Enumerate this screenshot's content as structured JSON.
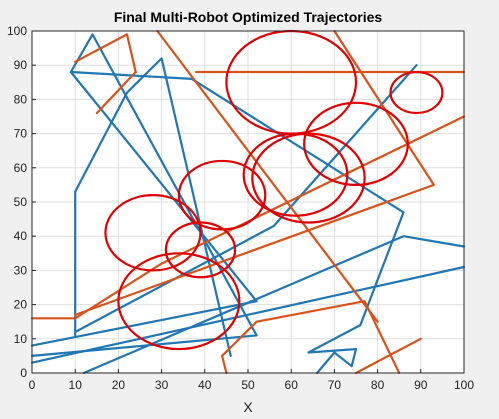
{
  "chart_data": {
    "type": "line",
    "title": "Final Multi-Robot Optimized Trajectories",
    "xlabel": "X",
    "ylabel": "",
    "xlim": [
      0,
      100
    ],
    "ylim": [
      0,
      100
    ],
    "xticks": [
      0,
      10,
      20,
      30,
      40,
      50,
      60,
      70,
      80,
      90,
      100
    ],
    "yticks": [
      0,
      10,
      20,
      30,
      40,
      50,
      60,
      70,
      80,
      90,
      100
    ],
    "grid": true,
    "colors": {
      "blue": "#1f77b4",
      "orange": "#d95319",
      "red": "#e00000",
      "background": "#f0f0f0",
      "plot_bg": "#ffffff",
      "grid": "#dfdfdf"
    },
    "series": [
      {
        "color": "#1f77b4",
        "points": [
          [
            0,
            8
          ],
          [
            52,
            21
          ],
          [
            9,
            88
          ],
          [
            14,
            99
          ],
          [
            52,
            11
          ],
          [
            0,
            5
          ]
        ]
      },
      {
        "color": "#1f77b4",
        "points": [
          [
            10,
            11
          ],
          [
            10,
            53
          ],
          [
            22,
            82
          ],
          [
            30,
            92
          ],
          [
            46,
            5
          ]
        ]
      },
      {
        "color": "#1f77b4",
        "points": [
          [
            9,
            88
          ],
          [
            37,
            86
          ],
          [
            86,
            47
          ],
          [
            76,
            14
          ],
          [
            64,
            6
          ],
          [
            75,
            7
          ],
          [
            74,
            2
          ],
          [
            70,
            6
          ],
          [
            66,
            0
          ]
        ]
      },
      {
        "color": "#1f77b4",
        "points": [
          [
            10,
            12
          ],
          [
            56,
            43
          ],
          [
            89,
            90
          ]
        ]
      },
      {
        "color": "#1f77b4",
        "points": [
          [
            12,
            0
          ],
          [
            86,
            40
          ],
          [
            100,
            37
          ]
        ]
      },
      {
        "color": "#1f77b4",
        "points": [
          [
            0,
            3
          ],
          [
            100,
            31
          ]
        ]
      },
      {
        "color": "#d95319",
        "points": [
          [
            0,
            16
          ],
          [
            10,
            16
          ],
          [
            30,
            32
          ],
          [
            100,
            75
          ]
        ]
      },
      {
        "color": "#d95319",
        "points": [
          [
            10,
            91
          ],
          [
            22,
            99
          ],
          [
            24,
            88
          ]
        ]
      },
      {
        "color": "#d95319",
        "points": [
          [
            24,
            88
          ],
          [
            15,
            76
          ]
        ]
      },
      {
        "color": "#d95319",
        "points": [
          [
            38,
            88
          ],
          [
            100,
            88
          ]
        ]
      },
      {
        "color": "#d95319",
        "points": [
          [
            29,
            100
          ],
          [
            80,
            15
          ]
        ]
      },
      {
        "color": "#d95319",
        "points": [
          [
            70,
            100
          ],
          [
            93,
            55
          ],
          [
            10,
            17
          ]
        ]
      },
      {
        "color": "#d95319",
        "points": [
          [
            44,
            5
          ],
          [
            45,
            0
          ]
        ]
      },
      {
        "color": "#d95319",
        "points": [
          [
            44,
            5
          ],
          [
            52,
            15
          ],
          [
            77,
            21
          ],
          [
            85,
            0
          ]
        ]
      },
      {
        "color": "#d95319",
        "points": [
          [
            75,
            0
          ],
          [
            90,
            10
          ]
        ]
      }
    ],
    "obstacles": [
      {
        "cx": 60,
        "cy": 85,
        "r": 15
      },
      {
        "cx": 89,
        "cy": 82,
        "r": 6
      },
      {
        "cx": 75,
        "cy": 67,
        "r": 12
      },
      {
        "cx": 61,
        "cy": 58,
        "r": 12
      },
      {
        "cx": 64,
        "cy": 57,
        "r": 13
      },
      {
        "cx": 44,
        "cy": 52,
        "r": 10
      },
      {
        "cx": 28,
        "cy": 41,
        "r": 11
      },
      {
        "cx": 39,
        "cy": 36,
        "r": 8
      },
      {
        "cx": 34,
        "cy": 21,
        "r": 14
      }
    ]
  }
}
